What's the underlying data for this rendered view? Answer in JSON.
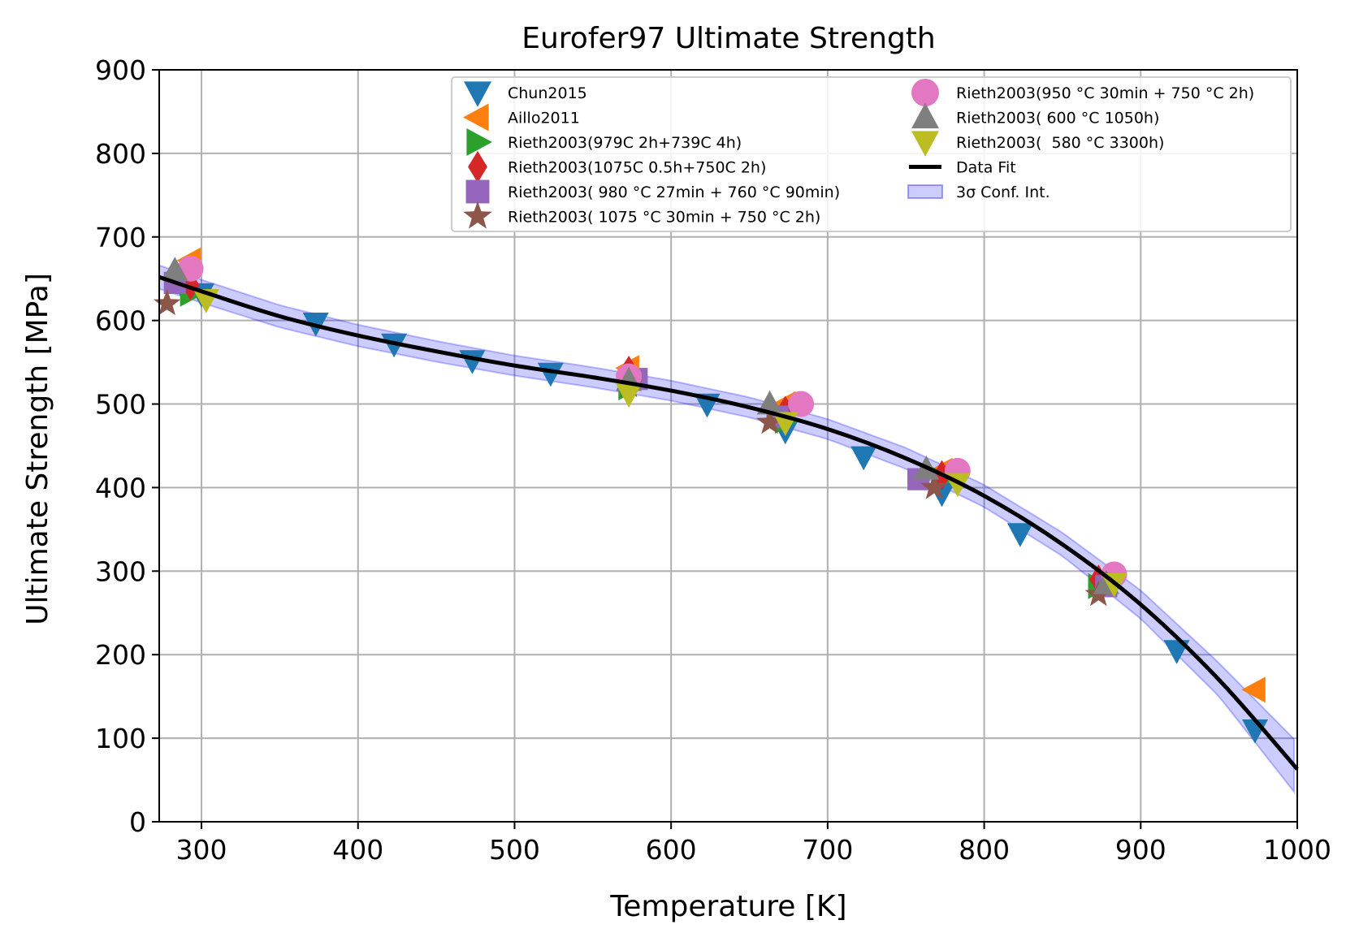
{
  "chart_data": {
    "type": "scatter",
    "title": "Eurofer97 Ultimate Strength",
    "xlabel": "Temperature [K]",
    "ylabel": "Ultimate Strength [MPa]",
    "xlim": [
      273,
      1000
    ],
    "ylim": [
      0,
      900
    ],
    "xticks": [
      300,
      400,
      500,
      600,
      700,
      800,
      900,
      1000
    ],
    "yticks": [
      0,
      100,
      200,
      300,
      400,
      500,
      600,
      700,
      800,
      900
    ],
    "grid": true,
    "legend_position": "top-right",
    "legend_columns": 2,
    "series": [
      {
        "name": "Chun2015",
        "marker": "triangle-down",
        "color": "#1f77b4",
        "points": [
          [
            288,
            640
          ],
          [
            300,
            632
          ],
          [
            373,
            597
          ],
          [
            423,
            572
          ],
          [
            473,
            552
          ],
          [
            523,
            537
          ],
          [
            573,
            524
          ],
          [
            623,
            500
          ],
          [
            673,
            468
          ],
          [
            723,
            437
          ],
          [
            773,
            393
          ],
          [
            823,
            345
          ],
          [
            923,
            205
          ],
          [
            973,
            110
          ]
        ]
      },
      {
        "name": "Aillo2011",
        "marker": "triangle-left",
        "color": "#ff7f0e",
        "points": [
          [
            293,
            672
          ],
          [
            573,
            543
          ],
          [
            673,
            500
          ],
          [
            773,
            420
          ],
          [
            973,
            158
          ]
        ]
      },
      {
        "name": "Rieth2003(979C 2h+739C 4h)",
        "marker": "triangle-right",
        "color": "#2ca02c",
        "points": [
          [
            293,
            632
          ],
          [
            573,
            520
          ],
          [
            673,
            480
          ],
          [
            773,
            410
          ],
          [
            873,
            282
          ]
        ]
      },
      {
        "name": "Rieth2003(1075C 0.5h+750C 2h)",
        "marker": "diamond",
        "color": "#d62728",
        "points": [
          [
            293,
            642
          ],
          [
            573,
            540
          ],
          [
            673,
            492
          ],
          [
            773,
            415
          ],
          [
            873,
            290
          ]
        ]
      },
      {
        "name": "Rieth2003( 980 °C 27min + 760 °C 90min)",
        "marker": "square",
        "color": "#9467bd",
        "points": [
          [
            283,
            645
          ],
          [
            578,
            530
          ],
          [
            668,
            485
          ],
          [
            758,
            410
          ],
          [
            878,
            282
          ]
        ]
      },
      {
        "name": "Rieth2003( 1075 °C 30min + 750 °C 2h)",
        "marker": "star",
        "color": "#8c564b",
        "points": [
          [
            278,
            620
          ],
          [
            573,
            522
          ],
          [
            663,
            478
          ],
          [
            768,
            400
          ],
          [
            873,
            272
          ]
        ]
      },
      {
        "name": "Rieth2003(950 °C 30min + 750 °C 2h)",
        "marker": "circle",
        "color": "#e377c2",
        "points": [
          [
            293,
            662
          ],
          [
            573,
            533
          ],
          [
            683,
            500
          ],
          [
            783,
            420
          ],
          [
            883,
            296
          ]
        ]
      },
      {
        "name": "Rieth2003( 600 °C 1050h)",
        "marker": "triangle-up",
        "color": "#7f7f7f",
        "points": [
          [
            283,
            660
          ],
          [
            573,
            528
          ],
          [
            663,
            500
          ],
          [
            763,
            422
          ],
          [
            878,
            285
          ]
        ]
      },
      {
        "name": "Rieth2003(  580 °C 3300h)",
        "marker": "triangle-down",
        "color": "#bcbd22",
        "points": [
          [
            303,
            625
          ],
          [
            573,
            512
          ],
          [
            673,
            478
          ],
          [
            783,
            405
          ],
          [
            883,
            285
          ]
        ]
      }
    ],
    "fit": {
      "name": "Data Fit",
      "color": "#000000",
      "x": [
        273,
        300,
        350,
        400,
        450,
        500,
        550,
        600,
        650,
        700,
        750,
        800,
        850,
        900,
        950,
        1000
      ],
      "y": [
        652,
        635,
        605,
        582,
        563,
        546,
        532,
        516,
        496,
        470,
        435,
        390,
        332,
        260,
        170,
        63
      ]
    },
    "confidence_band": {
      "name": "3σ Conf. Int.",
      "color": "#0000ff",
      "halfwidth_at_x": [
        [
          273,
          14
        ],
        [
          500,
          12
        ],
        [
          700,
          12
        ],
        [
          850,
          14
        ],
        [
          950,
          20
        ],
        [
          1000,
          32
        ]
      ]
    }
  }
}
